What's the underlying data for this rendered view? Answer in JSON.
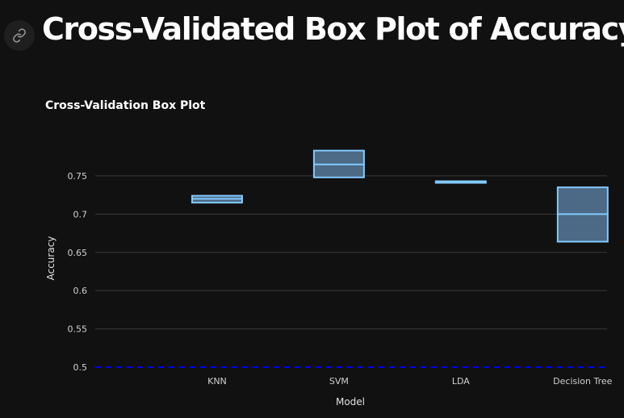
{
  "page": {
    "title": "Cross-Validated Box Plot of Accuracy",
    "anchor_icon": "link-icon"
  },
  "colors": {
    "background": "#111111",
    "box_fill": "#4c6a85",
    "box_stroke": "#83c9ff",
    "grid": "#3a3a3a",
    "baseline": "#0000ff",
    "text": "#fafafa"
  },
  "chart_data": {
    "type": "box",
    "title": "Cross-Validation Box Plot",
    "xlabel": "Model",
    "ylabel": "Accuracy",
    "ylim": [
      0.5,
      0.79
    ],
    "yticks": [
      0.5,
      0.55,
      0.6,
      0.65,
      0.7,
      0.75
    ],
    "ytick_labels": [
      "0.5",
      "0.55",
      "0.6",
      "0.65",
      "0.7",
      "0.75"
    ],
    "grid": true,
    "reference_line": {
      "y": 0.5,
      "style": "dashed"
    },
    "categories": [
      "KNN",
      "SVM",
      "LDA",
      "Decision Tree"
    ],
    "boxes": [
      {
        "name": "KNN",
        "q1": 0.715,
        "median": 0.72,
        "q3": 0.724
      },
      {
        "name": "SVM",
        "q1": 0.748,
        "median": 0.765,
        "q3": 0.783
      },
      {
        "name": "LDA",
        "q1": 0.741,
        "median": 0.742,
        "q3": 0.743
      },
      {
        "name": "Decision Tree",
        "q1": 0.664,
        "median": 0.7,
        "q3": 0.735
      }
    ]
  }
}
